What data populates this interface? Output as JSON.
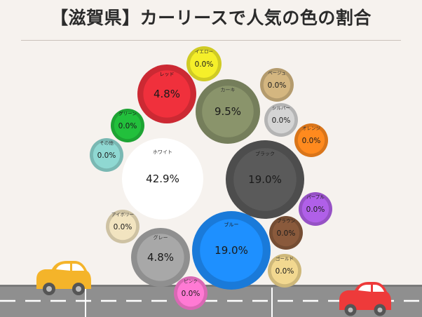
{
  "chart_data": {
    "type": "bubble",
    "title": "【滋賀県】カーリースで人気の色の割合",
    "unit": "%",
    "categories": [
      "ホワイト",
      "ブラック",
      "ブルー",
      "カーキ",
      "レッド",
      "グレー",
      "イエロー",
      "ベージュ",
      "シルバー",
      "オレンジ",
      "グリーン",
      "その他",
      "パープル",
      "ブラウン",
      "アイボリー",
      "ゴールド",
      "ピンク"
    ],
    "values": [
      42.9,
      19.0,
      19.0,
      9.5,
      4.8,
      4.8,
      0.0,
      0.0,
      0.0,
      0.0,
      0.0,
      0.0,
      0.0,
      0.0,
      0.0,
      0.0,
      0.0
    ],
    "labels": [
      "42.9%",
      "19.0%",
      "19.0%",
      "9.5%",
      "4.8%",
      "4.8%",
      "0.0%",
      "0.0%",
      "0.0%",
      "0.0%",
      "0.0%",
      "0.0%",
      "0.0%",
      "0.0%",
      "0.0%",
      "0.0%",
      "0.0%"
    ],
    "colors": [
      "#ffffff",
      "#5a5a5a",
      "#1e90ff",
      "#8a946b",
      "#f0303c",
      "#a8a8a8",
      "#f5ef2a",
      "#d4b680",
      "#d4d4d4",
      "#ff8a1e",
      "#22c03c",
      "#8fd8d2",
      "#b060e8",
      "#8a5a3c",
      "#f2e4c0",
      "#f2d890",
      "#ff7ad4"
    ]
  }
}
